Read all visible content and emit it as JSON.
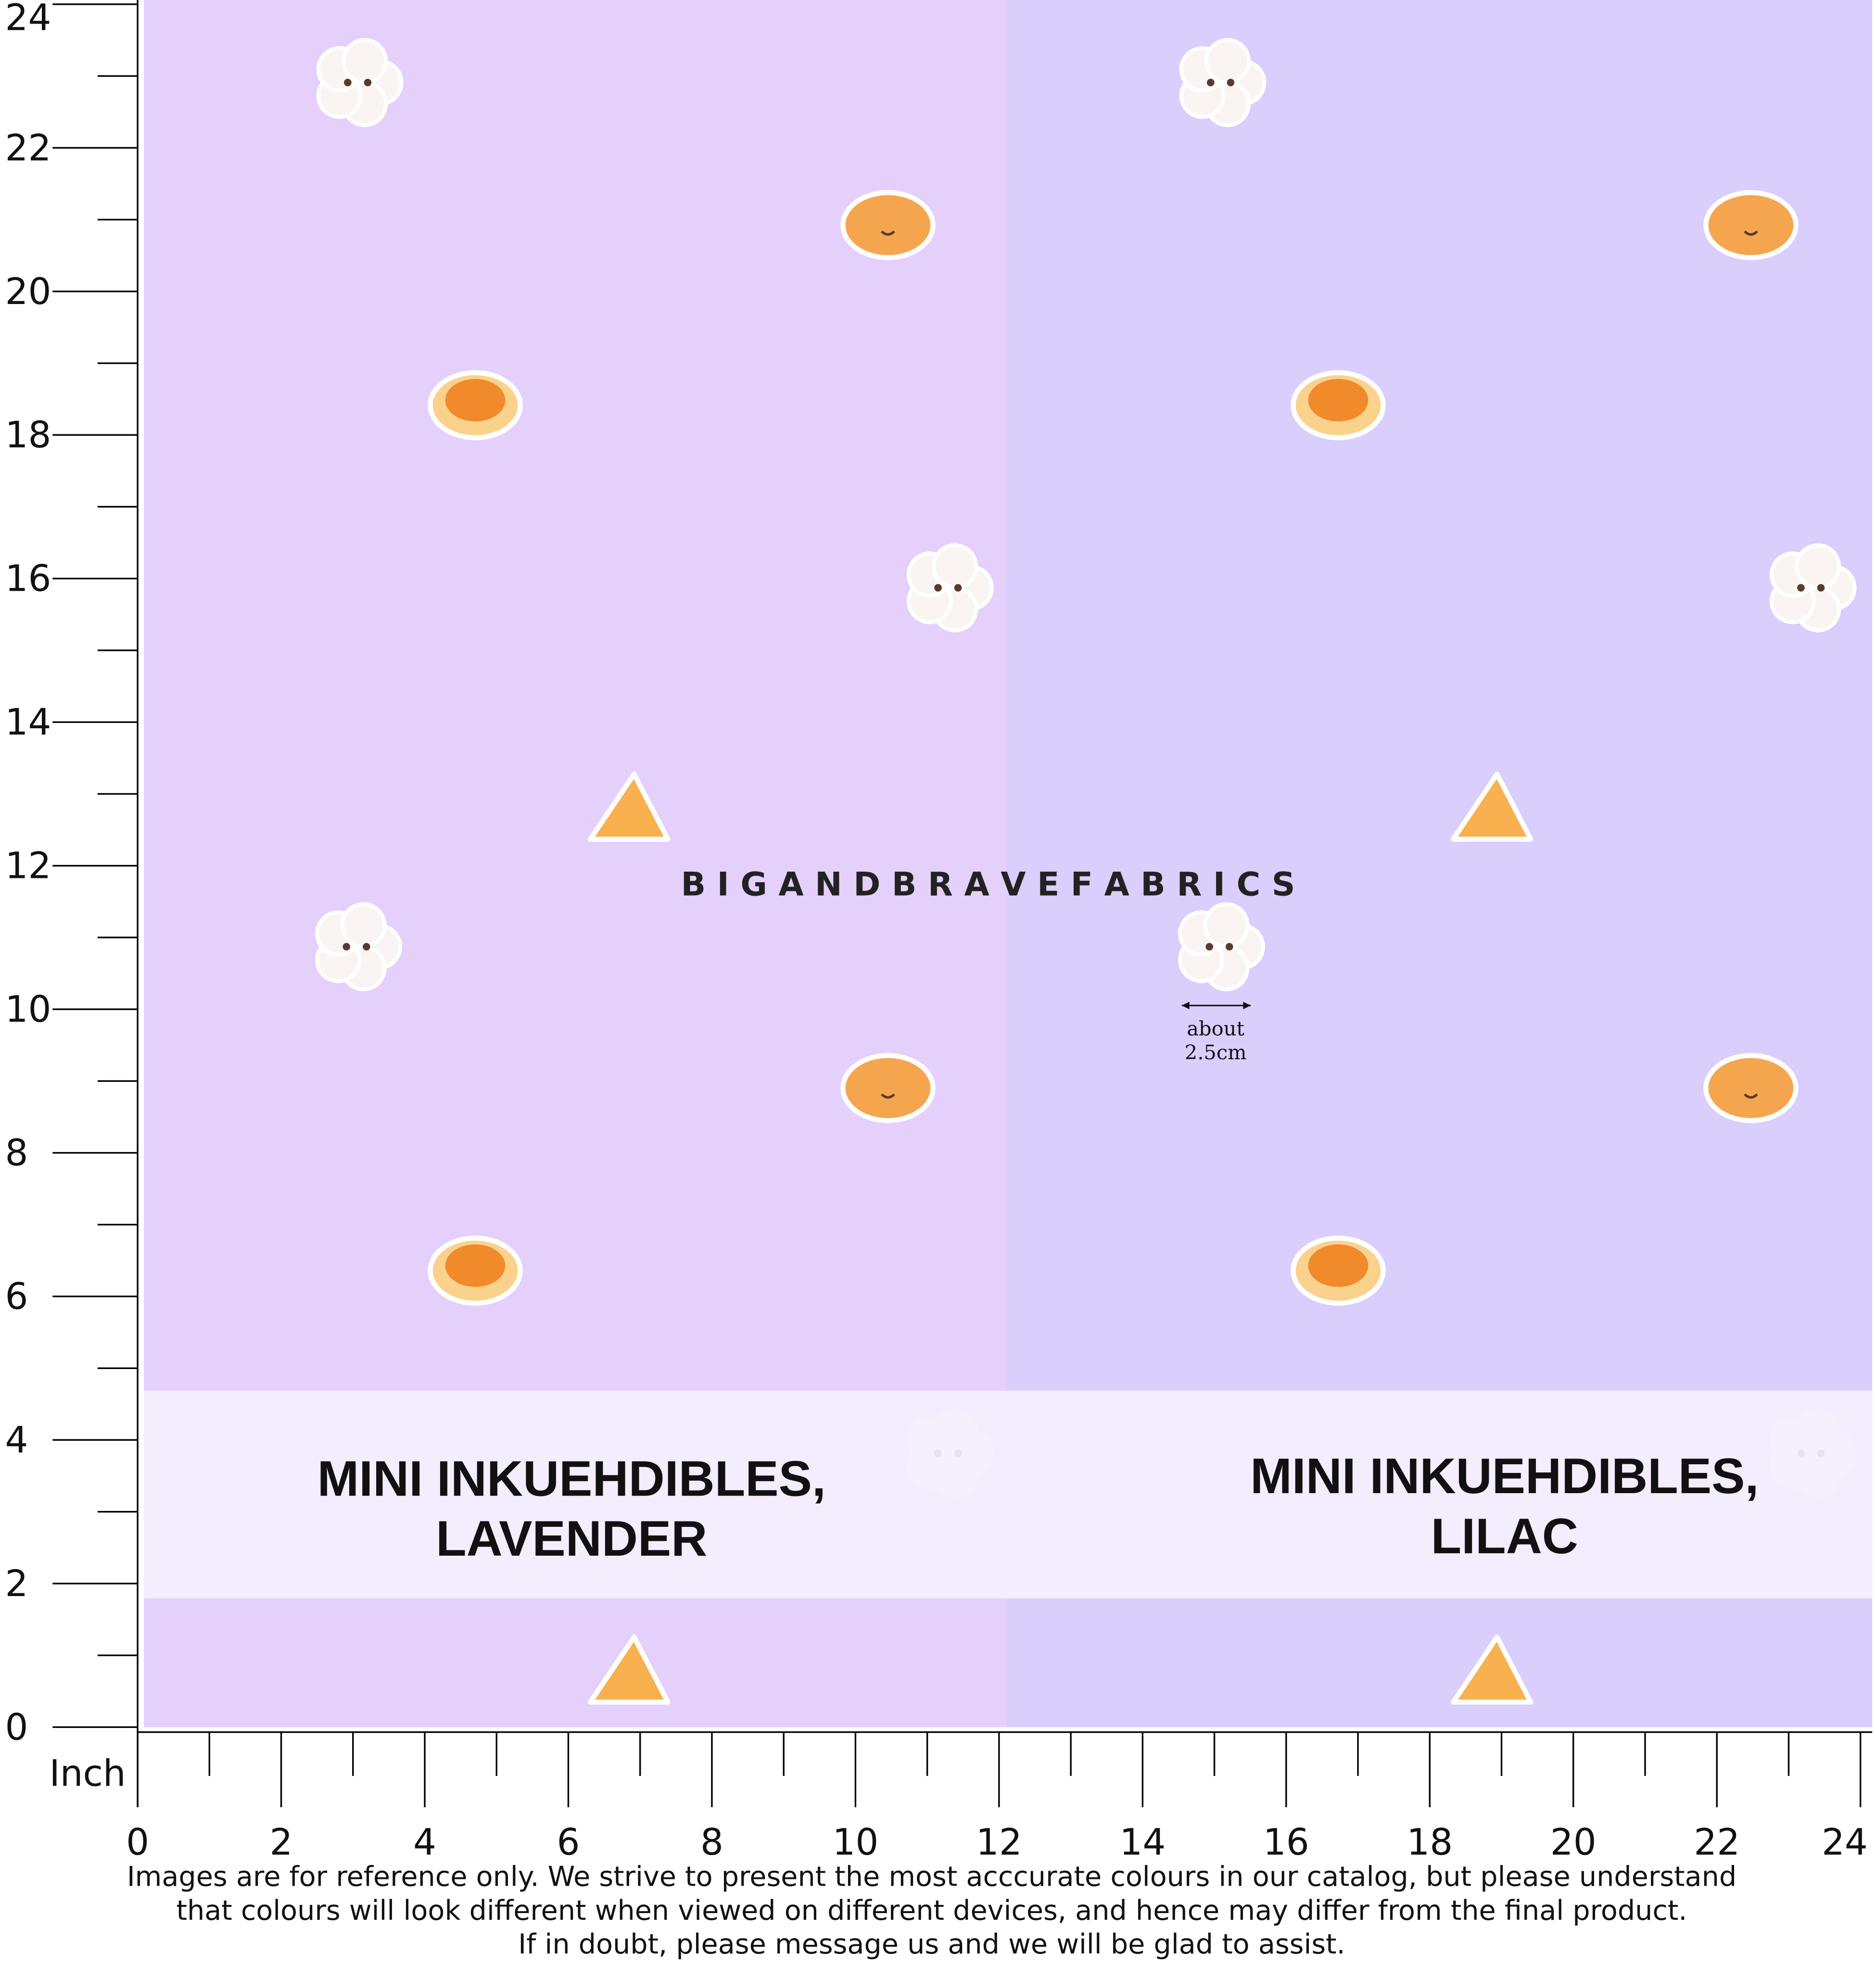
{
  "ruler": {
    "unit": "Inch",
    "left_ticks": [
      24,
      22,
      20,
      18,
      16,
      14,
      12,
      10,
      8,
      6,
      4,
      2,
      0
    ],
    "bottom_ticks": [
      0,
      2,
      4,
      6,
      8,
      10,
      12,
      14,
      16,
      18,
      20,
      22,
      24
    ]
  },
  "brand": "B I G A N D B R A V E F A B R I C S",
  "swatches": [
    {
      "name_line1": "MINI INKUEHDIBLES,",
      "name_line2": "LAVENDER"
    },
    {
      "name_line1": "MINI INKUEHDIBLES,",
      "name_line2": "LILAC"
    }
  ],
  "scale_note": {
    "line1": "about",
    "line2": "2.5cm"
  },
  "disclaimer": [
    "Images are for reference only. We strive to present the most acccurate colours in our catalog, but please understand",
    "that colours will look different when viewed on different devices, and hence may differ from the final product.",
    "If in doubt, please message us and we will be glad to assist."
  ]
}
